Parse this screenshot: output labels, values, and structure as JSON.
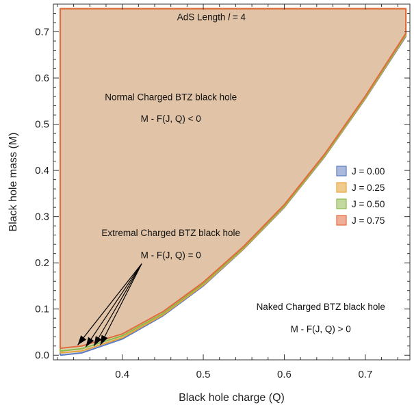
{
  "chart_data": {
    "type": "area",
    "xlabel": "Black hole charge (Q)",
    "ylabel": "Black hole mass (M)",
    "xlim": [
      0.315,
      0.755
    ],
    "ylim": [
      -0.01,
      0.76
    ],
    "xticks": [
      0.4,
      0.5,
      0.6,
      0.7
    ],
    "xtick_labels": [
      "0.4",
      "0.5",
      "0.6",
      "0.7"
    ],
    "yticks": [
      0.0,
      0.1,
      0.2,
      0.3,
      0.4,
      0.5,
      0.6,
      0.7
    ],
    "ytick_labels": [
      "0.0",
      "0.1",
      "0.2",
      "0.3",
      "0.4",
      "0.5",
      "0.6",
      "0.7"
    ],
    "grid": false,
    "legend_position": "right",
    "region_top_y": 0.75,
    "series": [
      {
        "name": "J = 0.00",
        "color": "#5b7bc2",
        "fill": "#aab9dc",
        "boundary": {
          "x": [
            0.3235,
            0.35,
            0.4,
            0.45,
            0.5,
            0.55,
            0.6,
            0.65,
            0.7,
            0.75
          ],
          "y": [
            0.0,
            0.005,
            0.035,
            0.085,
            0.15,
            0.23,
            0.32,
            0.43,
            0.555,
            0.69
          ]
        }
      },
      {
        "name": "J = 0.25",
        "color": "#e8a33a",
        "fill": "#f0cc8c",
        "boundary": {
          "x": [
            0.3235,
            0.35,
            0.4,
            0.45,
            0.5,
            0.55,
            0.6,
            0.65,
            0.7,
            0.75
          ],
          "y": [
            0.005,
            0.009,
            0.038,
            0.087,
            0.152,
            0.231,
            0.321,
            0.431,
            0.556,
            0.692
          ]
        }
      },
      {
        "name": "J = 0.50",
        "color": "#8db84a",
        "fill": "#c3d9a0",
        "boundary": {
          "x": [
            0.3235,
            0.35,
            0.4,
            0.45,
            0.5,
            0.55,
            0.6,
            0.65,
            0.7,
            0.75
          ],
          "y": [
            0.009,
            0.014,
            0.042,
            0.09,
            0.155,
            0.233,
            0.323,
            0.433,
            0.558,
            0.694
          ]
        }
      },
      {
        "name": "J = 0.75",
        "color": "#e36a3c",
        "fill": "#f0ae98",
        "boundary": {
          "x": [
            0.3235,
            0.35,
            0.4,
            0.45,
            0.5,
            0.55,
            0.6,
            0.65,
            0.7,
            0.75
          ],
          "y": [
            0.015,
            0.02,
            0.046,
            0.094,
            0.158,
            0.236,
            0.326,
            0.436,
            0.561,
            0.697
          ]
        }
      }
    ],
    "annotations": [
      {
        "id": "ads_length",
        "text": "AdS Length l = 4",
        "x": 0.51,
        "y": 0.725
      },
      {
        "id": "normal_title",
        "text": "Normal Charged BTZ black hole",
        "x": 0.46,
        "y": 0.552
      },
      {
        "id": "normal_condition",
        "text": "M - F(J, Q) < 0",
        "x": 0.46,
        "y": 0.505
      },
      {
        "id": "extremal_title",
        "text": "Extremal Charged BTZ black hole",
        "x": 0.46,
        "y": 0.258
      },
      {
        "id": "extremal_condition",
        "text": "M - F(J, Q) = 0",
        "x": 0.46,
        "y": 0.21
      },
      {
        "id": "naked_title",
        "text": "Naked Charged BTZ black hole",
        "x": 0.645,
        "y": 0.098
      },
      {
        "id": "naked_condition",
        "text": "M - F(J, Q) > 0",
        "x": 0.645,
        "y": 0.05
      }
    ],
    "arrows": {
      "origin": {
        "x": 0.424,
        "y": 0.198
      },
      "targets": [
        {
          "x": 0.345,
          "y": 0.022
        },
        {
          "x": 0.355,
          "y": 0.018
        },
        {
          "x": 0.365,
          "y": 0.02
        },
        {
          "x": 0.373,
          "y": 0.022
        }
      ]
    }
  }
}
